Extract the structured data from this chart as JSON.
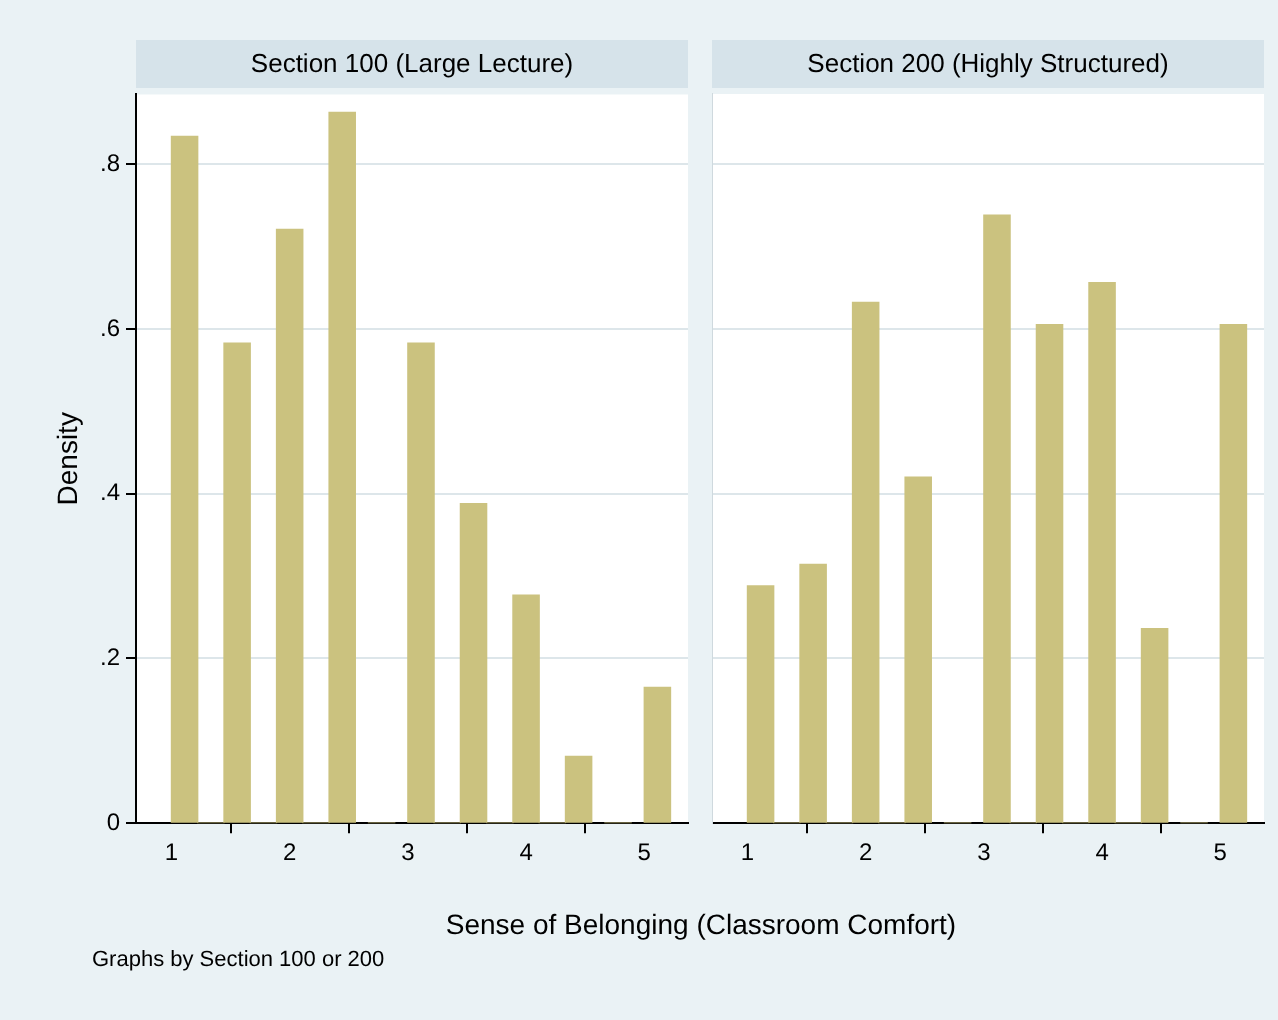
{
  "chart_data": [
    {
      "type": "histogram",
      "title": "Section 100 (Large Lecture)",
      "xlabel": "Sense of Belonging (Classroom Comfort)",
      "ylabel": "Density",
      "annotations": [
        "Graphs by Section 100 or 200"
      ],
      "color": "#cbc27f",
      "bins": [
        1,
        1.222,
        1.444,
        1.667,
        1.889,
        2.111,
        2.333,
        2.556,
        3,
        3.222,
        3.444,
        3.667,
        3.889,
        4.111,
        4.333,
        4.556,
        5,
        5.222
      ],
      "values": [
        0.834,
        0,
        0.583,
        0,
        0.721,
        0,
        0.863,
        0,
        0.583,
        0,
        0.388,
        0,
        0.277,
        0,
        0.081,
        0,
        0.165
      ],
      "xlim": [
        0.7,
        5.37
      ],
      "ylim": [
        0,
        0.885
      ],
      "xticks": [
        1,
        2,
        3,
        4,
        5
      ],
      "yticks": [
        0,
        {
          "value": 0.2,
          "label": ".2"
        },
        {
          "value": 0.4,
          "label": ".4"
        },
        {
          "value": 0.6,
          "label": ".6"
        },
        {
          "value": 0.8,
          "label": ".8"
        }
      ],
      "grid": "y"
    },
    {
      "type": "histogram",
      "title": "Section 200 (Highly Structured)",
      "color": "#cbc27f",
      "bins": [
        1,
        1.222,
        1.444,
        1.667,
        1.889,
        2.111,
        2.333,
        2.556,
        3,
        3.222,
        3.444,
        3.667,
        3.889,
        4.111,
        4.333,
        4.556,
        5,
        5.222
      ],
      "values": [
        0.288,
        0,
        0.314,
        0,
        0.632,
        0,
        0.42,
        0,
        0.738,
        0,
        0.605,
        0,
        0.656,
        0,
        0.236,
        0,
        0.605
      ],
      "xlim": [
        0.7,
        5.37
      ],
      "ylim": [
        0,
        0.885
      ],
      "xticks": [
        1,
        2,
        3,
        4,
        5
      ],
      "yticks": [
        0,
        0.2,
        0.4,
        0.6,
        0.8
      ],
      "grid": "y",
      "tick_labels": "x"
    }
  ]
}
